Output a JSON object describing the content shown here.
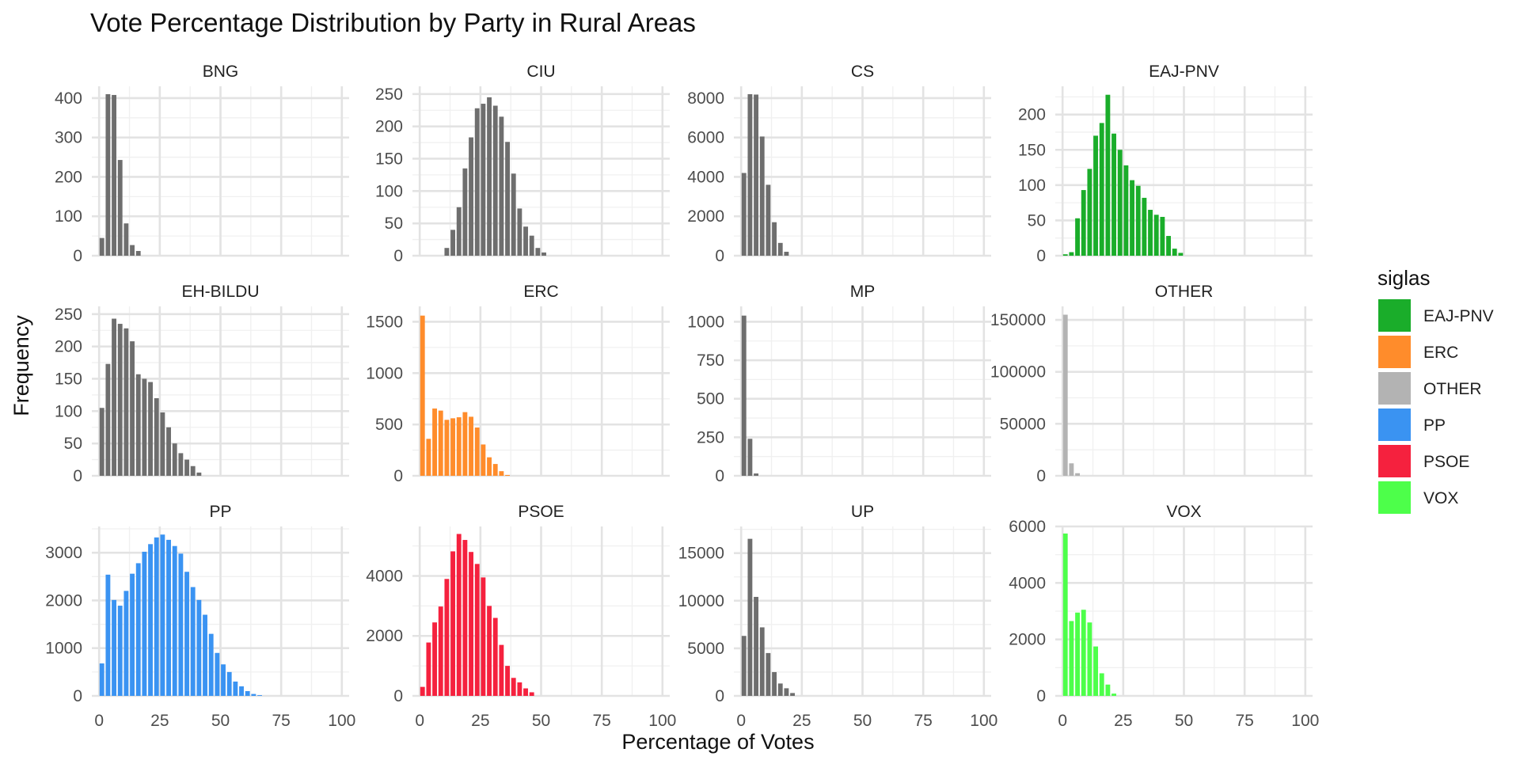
{
  "chart_data": {
    "type": "bar",
    "subtype": "faceted-histogram",
    "title": "Vote Percentage Distribution by Party in Rural Areas",
    "xlabel": "Percentage of Votes",
    "ylabel": "Frequency",
    "x_breaks": [
      0,
      25,
      50,
      75,
      100
    ],
    "xlim": [
      -3,
      103
    ],
    "bin_width": 2.5,
    "grid": true,
    "default_color": "#6e6e6e",
    "legend": {
      "title": "siglas",
      "position": "right",
      "items": [
        {
          "label": "EAJ-PNV",
          "color": "#1aad2a"
        },
        {
          "label": "ERC",
          "color": "#ff8c2b"
        },
        {
          "label": "OTHER",
          "color": "#b3b3b3"
        },
        {
          "label": "PP",
          "color": "#3a93f2"
        },
        {
          "label": "PSOE",
          "color": "#f5213e"
        },
        {
          "label": "VOX",
          "color": "#4dff4a"
        }
      ]
    },
    "facets": [
      {
        "name": "BNG",
        "color": "#6e6e6e",
        "y_breaks": [
          0,
          100,
          200,
          300,
          400
        ],
        "ylim": [
          0,
          430
        ],
        "counts": [
          45,
          410,
          408,
          243,
          82,
          27,
          12
        ]
      },
      {
        "name": "CIU",
        "color": "#6e6e6e",
        "y_breaks": [
          0,
          50,
          100,
          150,
          200,
          250
        ],
        "ylim": [
          0,
          262
        ],
        "counts": [
          0,
          0,
          0,
          0,
          12,
          40,
          75,
          135,
          183,
          228,
          235,
          245,
          232,
          215,
          176,
          127,
          73,
          45,
          31,
          12,
          5
        ]
      },
      {
        "name": "CS",
        "color": "#6e6e6e",
        "y_breaks": [
          0,
          2000,
          4000,
          6000,
          8000
        ],
        "ylim": [
          0,
          8600
        ],
        "counts": [
          4200,
          8200,
          8180,
          6050,
          3600,
          1700,
          650,
          200
        ]
      },
      {
        "name": "EAJ-PNV",
        "color": "#1aad2a",
        "y_breaks": [
          0,
          50,
          100,
          150,
          200
        ],
        "ylim": [
          0,
          240
        ],
        "counts": [
          2,
          5,
          53,
          93,
          123,
          170,
          188,
          228,
          173,
          150,
          128,
          107,
          99,
          82,
          65,
          58,
          55,
          28,
          10,
          4
        ]
      },
      {
        "name": "EH-BILDU",
        "color": "#6e6e6e",
        "y_breaks": [
          0,
          50,
          100,
          150,
          200,
          250
        ],
        "ylim": [
          0,
          262
        ],
        "counts": [
          105,
          173,
          243,
          235,
          228,
          208,
          157,
          150,
          145,
          120,
          98,
          75,
          50,
          35,
          25,
          15,
          5
        ]
      },
      {
        "name": "ERC",
        "color": "#ff8c2b",
        "y_breaks": [
          0,
          500,
          1000,
          1500
        ],
        "ylim": [
          0,
          1650
        ],
        "counts": [
          1560,
          360,
          655,
          635,
          545,
          560,
          570,
          620,
          575,
          470,
          305,
          180,
          115,
          45,
          8
        ]
      },
      {
        "name": "MP",
        "color": "#6e6e6e",
        "y_breaks": [
          0,
          250,
          500,
          750,
          1000
        ],
        "ylim": [
          0,
          1100
        ],
        "counts": [
          1040,
          240,
          15
        ]
      },
      {
        "name": "OTHER",
        "color": "#b3b3b3",
        "y_breaks": [
          0,
          50000,
          100000,
          150000
        ],
        "ylim": [
          0,
          163000
        ],
        "counts": [
          155000,
          12000,
          2500
        ]
      },
      {
        "name": "PP",
        "color": "#3a93f2",
        "y_breaks": [
          0,
          1000,
          2000,
          3000
        ],
        "ylim": [
          0,
          3550
        ],
        "counts": [
          680,
          2540,
          2010,
          1890,
          2200,
          2560,
          2780,
          3020,
          3180,
          3320,
          3380,
          3270,
          3140,
          2980,
          2600,
          2280,
          2010,
          1700,
          1300,
          900,
          660,
          500,
          300,
          200,
          100,
          40,
          15
        ]
      },
      {
        "name": "PSOE",
        "color": "#f5213e",
        "y_breaks": [
          0,
          2000,
          4000
        ],
        "ylim": [
          0,
          5650
        ],
        "counts": [
          300,
          1780,
          2450,
          2980,
          3900,
          4820,
          5400,
          5200,
          4800,
          4400,
          3950,
          3000,
          2600,
          1700,
          1000,
          600,
          450,
          250,
          120
        ]
      },
      {
        "name": "UP",
        "color": "#6e6e6e",
        "y_breaks": [
          0,
          5000,
          10000,
          15000
        ],
        "ylim": [
          0,
          17800
        ],
        "counts": [
          6300,
          16500,
          10400,
          7200,
          4500,
          2500,
          1300,
          800,
          300
        ]
      },
      {
        "name": "VOX",
        "color": "#4dff4a",
        "y_breaks": [
          0,
          2000,
          4000,
          6000
        ],
        "ylim": [
          0,
          6000
        ],
        "counts": [
          5750,
          2650,
          2950,
          3050,
          2600,
          1750,
          800,
          400,
          80
        ]
      }
    ]
  }
}
